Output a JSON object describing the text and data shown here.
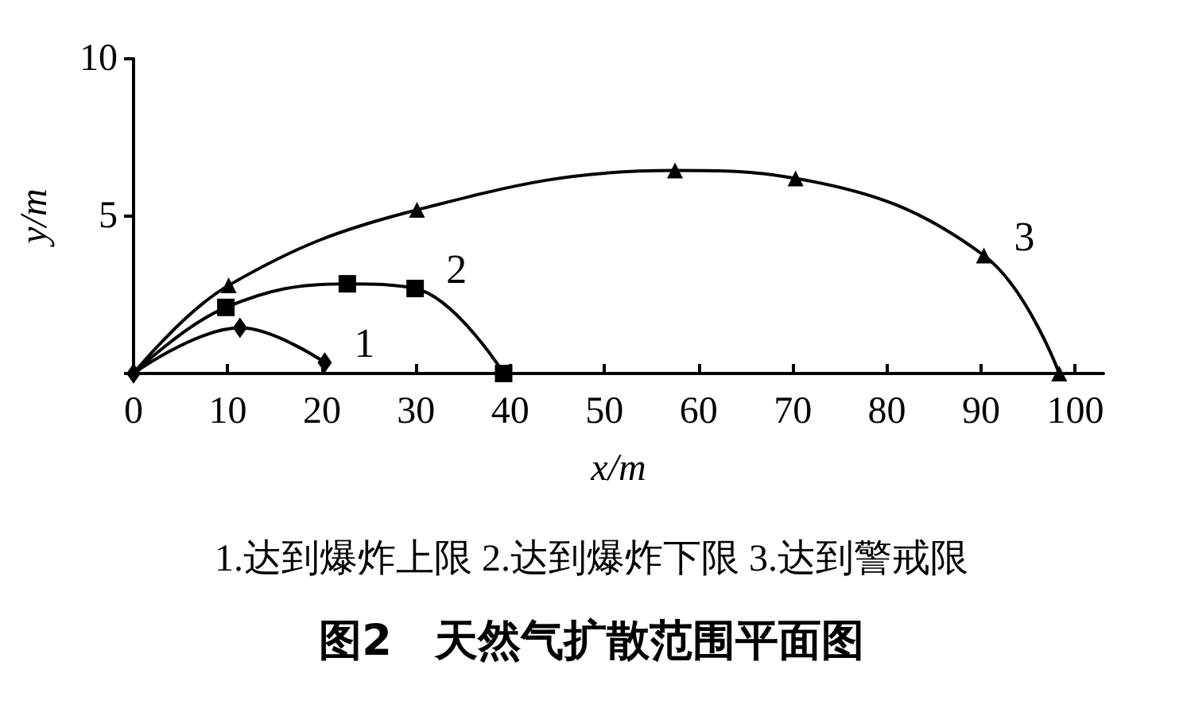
{
  "chart_data": {
    "type": "line",
    "title": "图2　天然气扩散范围平面图",
    "xlabel": "x/m",
    "ylabel": "y/m",
    "xlim": [
      0,
      103
    ],
    "xticks": [
      0,
      10,
      20,
      30,
      40,
      50,
      60,
      70,
      80,
      90,
      100
    ],
    "ylim": [
      0,
      10
    ],
    "yticks": [
      {
        "value": 0,
        "label": null
      },
      5,
      10
    ],
    "grid": false,
    "series": [
      {
        "name": "1",
        "x": [
          0,
          11.3,
          20.3
        ],
        "values": [
          0,
          1.45,
          0.35
        ],
        "color": "#000000",
        "marker": "diamond"
      },
      {
        "name": "2",
        "x": [
          0,
          9.8,
          22.7,
          29.9,
          39.3
        ],
        "values": [
          0,
          2.1,
          2.85,
          2.7,
          0
        ],
        "color": "#000000",
        "marker": "square"
      },
      {
        "name": "3",
        "x": [
          0,
          10.1,
          30.1,
          57.5,
          70.3,
          90.3,
          98.3
        ],
        "values": [
          0,
          2.8,
          5.2,
          6.45,
          6.2,
          3.75,
          0
        ],
        "color": "#000000",
        "marker": "triangle"
      }
    ],
    "annotations": [
      "1.达到爆炸上限 2.达到爆炸下限 3.达到警戒限"
    ]
  }
}
